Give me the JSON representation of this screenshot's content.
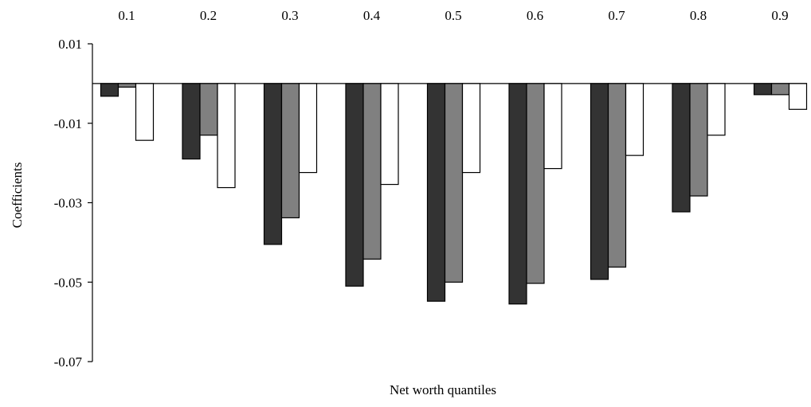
{
  "chart_data": {
    "type": "bar",
    "title": "",
    "xlabel": "Net worth quantiles",
    "ylabel": "Coefficients",
    "categories": [
      "0.1",
      "0.2",
      "0.3",
      "0.4",
      "0.5",
      "0.6",
      "0.7",
      "0.8",
      "0.9"
    ],
    "category_labels_position": "top",
    "yticks": [
      "0.01",
      "-0.01",
      "-0.03",
      "-0.05",
      "-0.07"
    ],
    "ylim": [
      -0.07,
      0.01
    ],
    "grid": false,
    "legend": "none",
    "series": [
      {
        "color": "#333333",
        "values": [
          -0.0032,
          -0.019,
          -0.0405,
          -0.051,
          -0.0548,
          -0.0555,
          -0.0493,
          -0.0323,
          -0.0028
        ]
      },
      {
        "color": "#808080",
        "values": [
          -0.0009,
          -0.013,
          -0.0338,
          -0.0442,
          -0.05,
          -0.0503,
          -0.0462,
          -0.0283,
          -0.0028
        ]
      },
      {
        "color": "#ffffff",
        "values": [
          -0.0143,
          -0.0262,
          -0.0224,
          -0.0254,
          -0.0224,
          -0.0214,
          -0.0181,
          -0.013,
          -0.0065
        ]
      }
    ]
  }
}
